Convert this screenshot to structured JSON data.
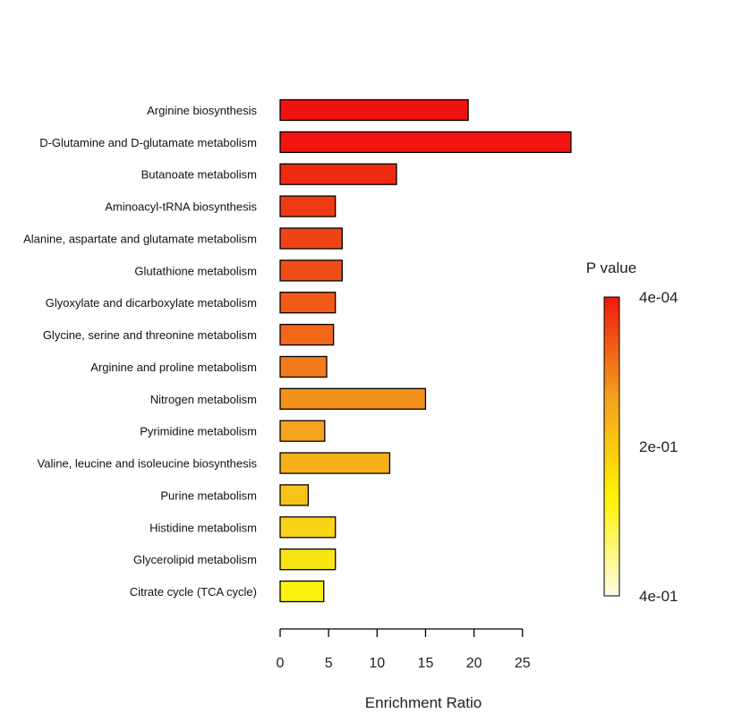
{
  "chart_data": {
    "type": "bar",
    "orientation": "horizontal",
    "categories": [
      "Arginine biosynthesis",
      "D-Glutamine and D-glutamate metabolism",
      "Butanoate metabolism",
      "Aminoacyl-tRNA biosynthesis",
      "Alanine, aspartate and glutamate metabolism",
      "Glutathione metabolism",
      "Glyoxylate and dicarboxylate metabolism",
      "Glycine, serine and threonine metabolism",
      "Arginine and proline metabolism",
      "Nitrogen metabolism",
      "Pyrimidine metabolism",
      "Valine, leucine and isoleucine biosynthesis",
      "Purine metabolism",
      "Histidine metabolism",
      "Glycerolipid metabolism",
      "Citrate cycle (TCA cycle)"
    ],
    "values": [
      19.4,
      30.0,
      12.0,
      5.7,
      6.4,
      6.4,
      5.7,
      5.5,
      4.8,
      15.0,
      4.6,
      11.3,
      2.9,
      5.7,
      5.7,
      4.5
    ],
    "bar_colors": [
      "#f0120e",
      "#f3140f",
      "#ee2a13",
      "#f03a14",
      "#ee4416",
      "#ee4f17",
      "#f15a19",
      "#f26819",
      "#f37a1a",
      "#f3901c",
      "#f5a31c",
      "#f6b01a",
      "#f7c318",
      "#f8d316",
      "#f9e414",
      "#fbf20f"
    ],
    "xlabel": "Enrichment Ratio",
    "ylabel": "",
    "xlim": [
      0,
      30
    ],
    "xticks": [
      "0",
      "5",
      "10",
      "15",
      "20",
      "25"
    ],
    "grid": false,
    "legend": {
      "title": "P value",
      "placement": "right",
      "type": "colorbar",
      "labels": [
        "4e-04",
        "2e-01",
        "4e-01"
      ],
      "colors": [
        "#ee1a0e",
        "#f5a01c",
        "#fff200",
        "#fffbe6"
      ]
    }
  }
}
